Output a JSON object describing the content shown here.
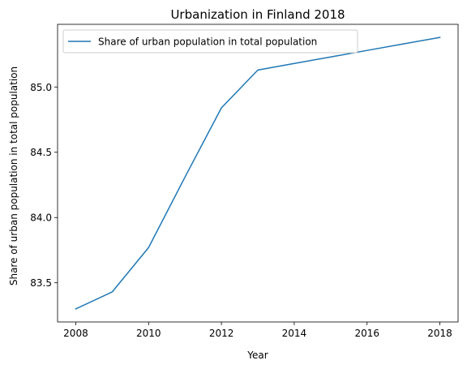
{
  "chart_data": {
    "type": "line",
    "title": "Urbanization in Finland 2018",
    "xlabel": "Year",
    "ylabel": "Share of urban population in total population",
    "x": [
      2008,
      2009,
      2010,
      2011,
      2012,
      2013,
      2014,
      2015,
      2016,
      2017,
      2018
    ],
    "series": [
      {
        "name": "Share of urban population in total population",
        "color": "#1f77b4",
        "values": [
          83.3,
          83.43,
          83.77,
          84.31,
          84.84,
          85.13,
          85.18,
          85.23,
          85.28,
          85.33,
          85.38
        ]
      }
    ],
    "xlim": [
      2007.5,
      2018.5
    ],
    "ylim": [
      83.2,
      85.48
    ],
    "xticks": [
      2008,
      2010,
      2012,
      2014,
      2016,
      2018
    ],
    "yticks": [
      83.5,
      84.0,
      84.5,
      85.0
    ],
    "ytick_labels": [
      "83.5",
      "84.0",
      "84.5",
      "85.0"
    ],
    "grid": false,
    "legend_position": "upper-left"
  }
}
